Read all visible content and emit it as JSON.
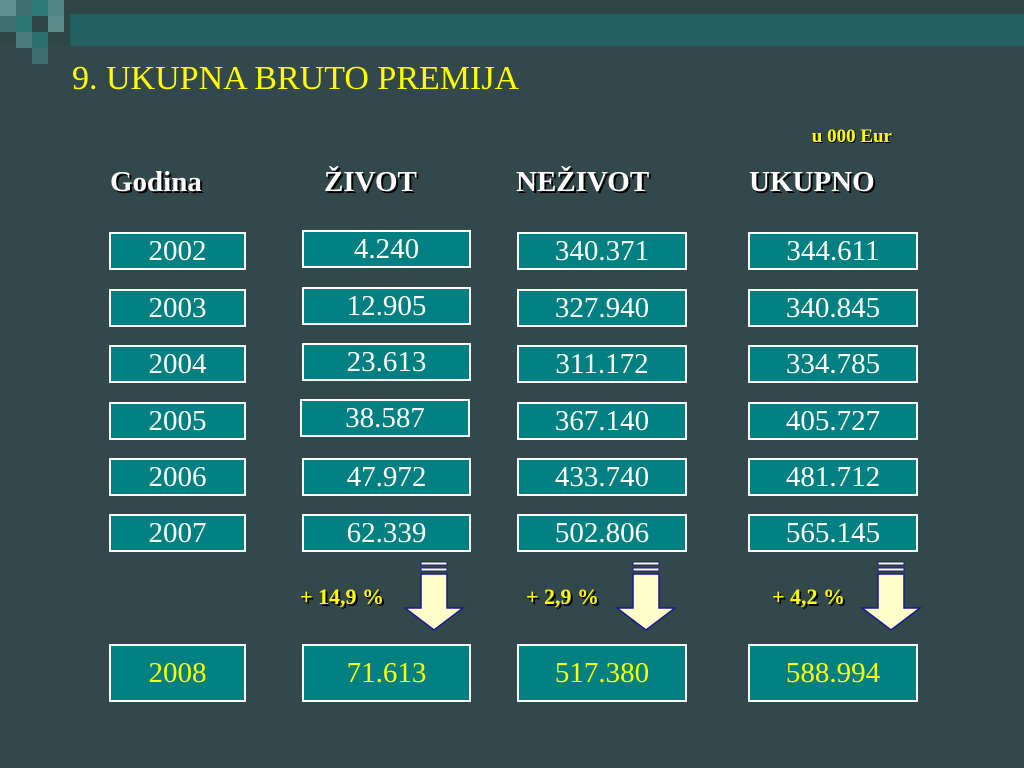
{
  "title": "9. UKUPNA BRUTO PREMIJA",
  "unit": "u 000 Eur",
  "headers": [
    "Godina",
    "ŽIVOT",
    "NEŽIVOT",
    "UKUPNO"
  ],
  "rows": [
    {
      "godina": "2002",
      "zivot": "4.240",
      "nezivot": "340.371",
      "ukupno": "344.611"
    },
    {
      "godina": "2003",
      "zivot": "12.905",
      "nezivot": "327.940",
      "ukupno": "340.845"
    },
    {
      "godina": "2004",
      "zivot": "23.613",
      "nezivot": "311.172",
      "ukupno": "334.785"
    },
    {
      "godina": "2005",
      "zivot": "38.587",
      "nezivot": "367.140",
      "ukupno": "405.727"
    },
    {
      "godina": "2006",
      "zivot": "47.972",
      "nezivot": "433.740",
      "ukupno": "481.712"
    },
    {
      "godina": "2007",
      "zivot": "62.339",
      "nezivot": "502.806",
      "ukupno": "565.145"
    }
  ],
  "growth": {
    "zivot": "+ 14,9 %",
    "nezivot": "+ 2,9 %",
    "ukupno": "+ 4,2 %"
  },
  "forecast": {
    "godina": "2008",
    "zivot": "71.613",
    "nezivot": "517.380",
    "ukupno": "588.994"
  },
  "colors": {
    "background": "#33484a",
    "cell_fill": "#008080",
    "title": "#ffff00",
    "arrow_fill": "#ffffcc",
    "arrow_outline": "#1a1a8c"
  }
}
